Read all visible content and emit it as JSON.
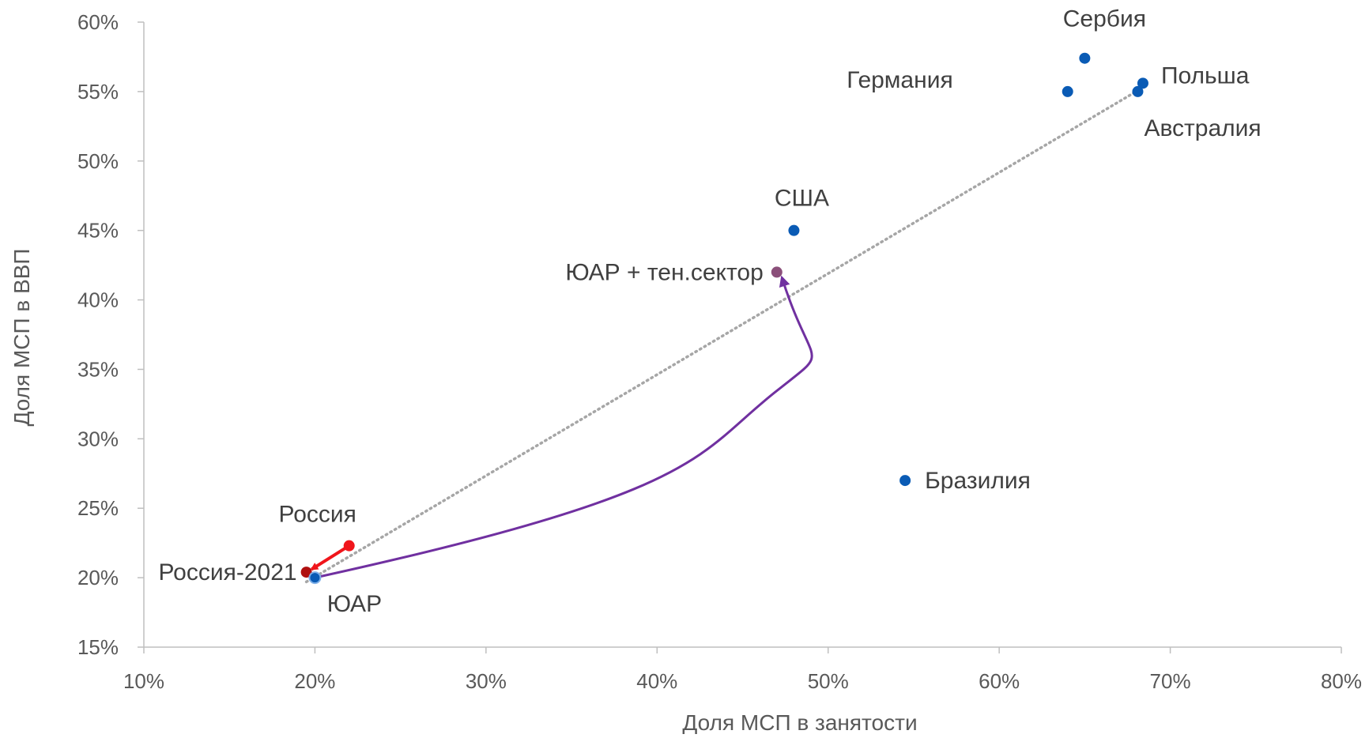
{
  "chart_data": {
    "type": "scatter",
    "title": "",
    "xlabel": "Доля МСП в занятости",
    "ylabel": "Доля МСП в ВВП",
    "xlim": [
      10,
      80
    ],
    "ylim": [
      15,
      60
    ],
    "x_ticks": [
      10,
      20,
      30,
      40,
      50,
      60,
      70,
      80
    ],
    "y_ticks": [
      15,
      20,
      25,
      30,
      35,
      40,
      45,
      50,
      55,
      60
    ],
    "x_tick_labels": [
      "10%",
      "20%",
      "30%",
      "40%",
      "50%",
      "60%",
      "70%",
      "80%"
    ],
    "y_tick_labels": [
      "15%",
      "20%",
      "25%",
      "30%",
      "35%",
      "40%",
      "45%",
      "50%",
      "55%",
      "60%"
    ],
    "grid": false,
    "legend": "none",
    "colors": {
      "country": "#0A5BB5",
      "russia": "#F0151B",
      "russia_2021": "#B01010",
      "south_africa_shadow": "#8B4F7A",
      "trend": "#A6A6A6",
      "curve_arrow": "#7030A0",
      "axis": "#BFBFBF"
    },
    "points": [
      {
        "label": "Сербия",
        "x": 65.0,
        "y": 57.4,
        "color": "#0A5BB5"
      },
      {
        "label": "Польша",
        "x": 68.4,
        "y": 55.6,
        "color": "#0A5BB5"
      },
      {
        "label": "Германия",
        "x": 64.0,
        "y": 55.0,
        "color": "#0A5BB5"
      },
      {
        "label": "Австралия",
        "x": 68.1,
        "y": 55.0,
        "color": "#0A5BB5"
      },
      {
        "label": "США",
        "x": 48.0,
        "y": 45.0,
        "color": "#0A5BB5"
      },
      {
        "label": "ЮАР + тен.сектор",
        "x": 47.0,
        "y": 42.0,
        "color": "#8B4F7A"
      },
      {
        "label": "Бразилия",
        "x": 54.5,
        "y": 27.0,
        "color": "#0A5BB5"
      },
      {
        "label": "Россия",
        "x": 22.0,
        "y": 22.3,
        "color": "#F0151B"
      },
      {
        "label": "Россия-2021",
        "x": 19.5,
        "y": 20.4,
        "color": "#B01010"
      },
      {
        "label": "ЮАР",
        "x": 20.0,
        "y": 20.0,
        "color": "#0A5BB5"
      }
    ],
    "trendline": {
      "style": "dotted",
      "from": [
        19.5,
        19.7
      ],
      "to": [
        68.0,
        55.0
      ]
    },
    "annotations": [
      {
        "type": "arrow",
        "from": [
          22.0,
          22.3
        ],
        "to": [
          19.8,
          20.6
        ],
        "color": "#F0151B"
      },
      {
        "type": "curved-arrow",
        "from": [
          20.0,
          20.0
        ],
        "to": [
          47.3,
          41.6
        ],
        "color": "#7030A0"
      }
    ]
  }
}
